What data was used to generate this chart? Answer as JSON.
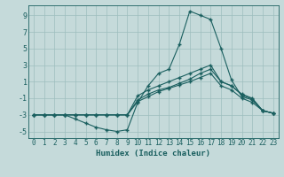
{
  "title": "",
  "xlabel": "Humidex (Indice chaleur)",
  "xlim": [
    -0.5,
    23.5
  ],
  "ylim": [
    -5.8,
    10.2
  ],
  "xticks": [
    0,
    1,
    2,
    3,
    4,
    5,
    6,
    7,
    8,
    9,
    10,
    11,
    12,
    13,
    14,
    15,
    16,
    17,
    18,
    19,
    20,
    21,
    22,
    23
  ],
  "yticks": [
    -5,
    -3,
    -1,
    1,
    3,
    5,
    7,
    9
  ],
  "bg_color": "#c5dada",
  "grid_color": "#9dbebe",
  "line_color": "#1a5f5f",
  "lines": [
    {
      "x": [
        0,
        1,
        2,
        3,
        4,
        5,
        6,
        7,
        8,
        9,
        10,
        11,
        12,
        13,
        14,
        15,
        16,
        17,
        18,
        19,
        20,
        21,
        22,
        23
      ],
      "y": [
        -3,
        -3,
        -3,
        -3,
        -3.5,
        -4,
        -4.5,
        -4.8,
        -5,
        -4.8,
        -1.5,
        0.5,
        2.0,
        2.5,
        5.5,
        9.5,
        9,
        8.5,
        5,
        1.2,
        -0.8,
        -1.2,
        -2.5,
        -2.8
      ]
    },
    {
      "x": [
        0,
        1,
        2,
        3,
        4,
        5,
        6,
        7,
        8,
        9,
        10,
        11,
        12,
        13,
        14,
        15,
        16,
        17,
        18,
        19,
        20,
        21,
        22,
        23
      ],
      "y": [
        -3,
        -3,
        -3,
        -3,
        -3,
        -3,
        -3,
        -3,
        -3,
        -3,
        -0.7,
        0.0,
        0.5,
        1.0,
        1.5,
        2.0,
        2.5,
        3.0,
        1.0,
        0.5,
        -0.5,
        -1.0,
        -2.5,
        -2.8
      ]
    },
    {
      "x": [
        0,
        1,
        2,
        3,
        4,
        5,
        6,
        7,
        8,
        9,
        10,
        11,
        12,
        13,
        14,
        15,
        16,
        17,
        18,
        19,
        20,
        21,
        22,
        23
      ],
      "y": [
        -3,
        -3,
        -3,
        -3,
        -3,
        -3,
        -3,
        -3,
        -3,
        -3,
        -1.4,
        -0.8,
        -0.2,
        0.2,
        0.6,
        1.0,
        1.5,
        2.0,
        0.5,
        0.0,
        -1.0,
        -1.5,
        -2.5,
        -2.8
      ]
    },
    {
      "x": [
        0,
        1,
        2,
        3,
        4,
        5,
        6,
        7,
        8,
        9,
        10,
        11,
        12,
        13,
        14,
        15,
        16,
        17,
        18,
        19,
        20,
        21,
        22,
        23
      ],
      "y": [
        -3,
        -3,
        -3,
        -3,
        -3,
        -3,
        -3,
        -3,
        -3,
        -3,
        -1.2,
        -0.5,
        0.0,
        0.3,
        0.8,
        1.3,
        2.0,
        2.5,
        1.0,
        0.5,
        -0.6,
        -1.1,
        -2.5,
        -2.8
      ]
    }
  ],
  "marker": "+",
  "markersize": 3.0,
  "linewidth": 0.8,
  "xlabel_fontsize": 6.5,
  "tick_fontsize": 5.5
}
